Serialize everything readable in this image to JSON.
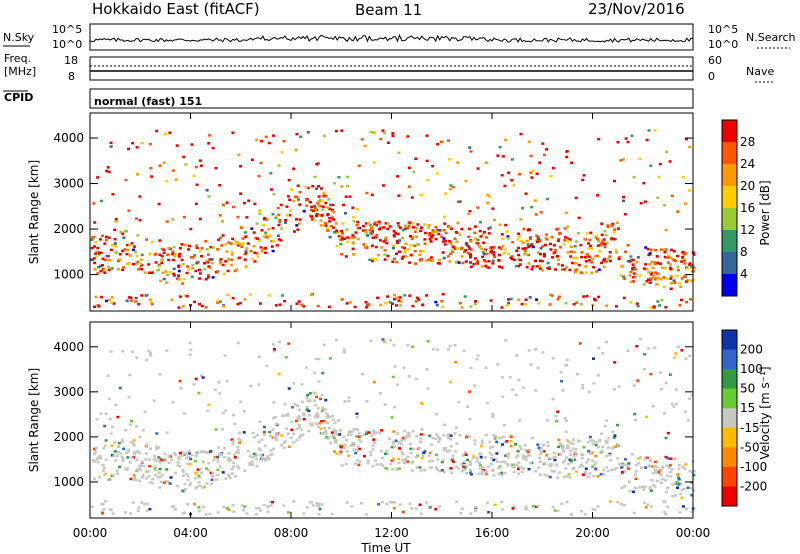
{
  "header": {
    "station": "Hokkaido East (fitACF)",
    "beam": "Beam 11",
    "date": "23/Nov/2016"
  },
  "noise_panel": {
    "left_label": "N.Sky",
    "left_ticks": [
      "10^5",
      "10^0"
    ],
    "right_ticks": [
      "10^5",
      "10^0"
    ],
    "right_label": "N.Search"
  },
  "freq_panel": {
    "left_label_line1": "Freq.",
    "left_label_line2": "[MHz]",
    "left_ticks": [
      "18",
      "8"
    ],
    "right_ticks": [
      "60",
      "0"
    ],
    "right_label": "Nave"
  },
  "cpid_panel": {
    "label": "CPID",
    "mode": "normal (fast) 151"
  },
  "time_axis": {
    "label": "Time UT",
    "ticks": [
      "00:00",
      "04:00",
      "08:00",
      "12:00",
      "16:00",
      "20:00",
      "00:00"
    ]
  },
  "chart_data": [
    {
      "type": "heatmap",
      "panel": "power",
      "ylabel": "Slant Range [km]",
      "yticks": [
        1000,
        2000,
        3000,
        4000
      ],
      "ylim": [
        200,
        4550
      ],
      "xlim_hours": [
        0,
        24
      ],
      "colorbar_label": "Power [dB]",
      "colorbar_ticks": [
        "28",
        "24",
        "20",
        "16",
        "12",
        "8",
        "4"
      ],
      "colorbar_colors": [
        "#ee0000",
        "#ff5500",
        "#ff9900",
        "#ffcc00",
        "#99cc33",
        "#339966",
        "#336699",
        "#0000ee"
      ]
    },
    {
      "type": "heatmap",
      "panel": "velocity",
      "ylabel": "Slant Range [km]",
      "yticks": [
        1000,
        2000,
        3000,
        4000
      ],
      "ylim": [
        200,
        4550
      ],
      "xlim_hours": [
        0,
        24
      ],
      "colorbar_label": "Velocity [m s⁻¹]",
      "colorbar_ticks": [
        "200",
        "100",
        "50",
        "15",
        "-15",
        "-50",
        "-100",
        "-200"
      ],
      "colorbar_colors": [
        "#1133aa",
        "#3366cc",
        "#339944",
        "#66cc33",
        "#c8c8c0",
        "#ffbb00",
        "#ff8800",
        "#ff4400",
        "#ee0000"
      ]
    }
  ],
  "colors": {
    "frame": "#000000",
    "ground_scatter": "#c8c8c0",
    "power_high": "#ee2200"
  }
}
